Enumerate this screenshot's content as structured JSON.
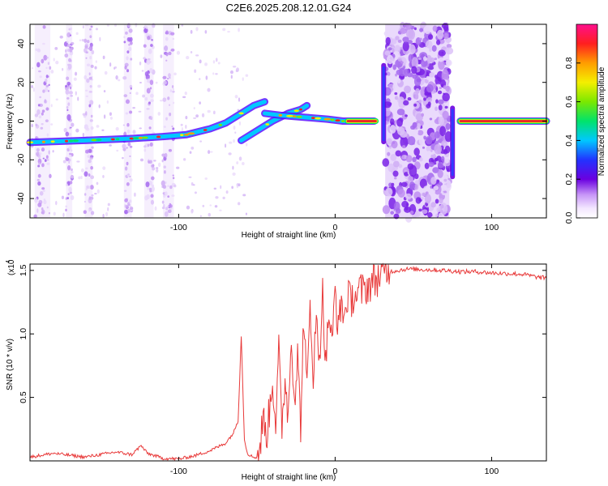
{
  "figure": {
    "title": "C2E6.2025.208.12.01.G24"
  },
  "chart_data": [
    {
      "type": "heatmap",
      "xlabel": "Height of straight line (km)",
      "ylabel": "Frequency (Hz)",
      "xlim": [
        -195,
        135
      ],
      "ylim": [
        -50,
        50
      ],
      "xticks": [
        -100,
        0,
        100
      ],
      "xtick_labels": [
        "-100",
        "0",
        "100"
      ],
      "yticks": [
        -40,
        -20,
        0,
        20,
        40
      ],
      "ytick_labels": [
        "-40",
        "-20",
        "0",
        "20",
        "40"
      ],
      "colorbar": {
        "label": "Normalized spectral amplitude",
        "range": [
          0,
          1
        ],
        "ticks": [
          0.0,
          0.2,
          0.4,
          0.6,
          0.8
        ],
        "tick_labels": [
          "0.0",
          "0.2",
          "0.4",
          "0.6",
          "0.8"
        ]
      },
      "ridges": [
        {
          "points": [
            [
              -195,
              -11
            ],
            [
              -160,
              -10
            ],
            [
              -130,
              -9
            ],
            [
              -110,
              -8
            ],
            [
              -95,
              -7
            ],
            [
              -80,
              -4
            ],
            [
              -70,
              -1
            ],
            [
              -60,
              4
            ],
            [
              -52,
              8
            ],
            [
              -45,
              10
            ]
          ]
        },
        {
          "points": [
            [
              -60,
              -10
            ],
            [
              -50,
              -5
            ],
            [
              -40,
              0
            ],
            [
              -30,
              4
            ],
            [
              -22,
              6
            ],
            [
              -18,
              8
            ]
          ]
        },
        {
          "points": [
            [
              -45,
              4
            ],
            [
              -35,
              3
            ],
            [
              -20,
              2
            ],
            [
              -5,
              1
            ],
            [
              5,
              0
            ],
            [
              25,
              0
            ]
          ]
        },
        {
          "points": [
            [
              80,
              0
            ],
            [
              135,
              0
            ]
          ]
        }
      ],
      "bright_segments": [
        {
          "x": [
            8,
            26
          ],
          "y": 0
        },
        {
          "x": [
            80,
            135
          ],
          "y": 0
        }
      ],
      "noise_bands": [
        [
          -192,
          -182
        ],
        [
          -172,
          -168
        ],
        [
          -160,
          -155
        ],
        [
          -135,
          -130
        ],
        [
          -122,
          -116
        ],
        [
          -110,
          -103
        ],
        [
          32,
          73
        ]
      ],
      "vertical_streaks": [
        {
          "x": 31,
          "y": [
            -12,
            30
          ]
        },
        {
          "x": 75,
          "y": [
            -30,
            8
          ]
        }
      ]
    },
    {
      "type": "line",
      "xlabel": "Height of straight line (km)",
      "ylabel": "SNR (10 * v/v)",
      "scale_label": "(x10",
      "scale_exponent": "4",
      "xlim": [
        -195,
        135
      ],
      "ylim": [
        0,
        15500
      ],
      "xticks": [
        -100,
        0,
        100
      ],
      "xtick_labels": [
        "-100",
        "0",
        "100"
      ],
      "yticks": [
        5000,
        10000,
        15000
      ],
      "ytick_labels": [
        "0.5",
        "1.0",
        "1.5"
      ],
      "color": "#e83a3a",
      "series": [
        {
          "x": [
            -195,
            -180,
            -160,
            -140,
            -130,
            -124,
            -120,
            -110,
            -100,
            -90,
            -80,
            -75,
            -70,
            -65,
            -62,
            -60,
            -58,
            -56,
            -54,
            -52,
            -50,
            -48,
            -46,
            -44,
            -42,
            -40,
            -38,
            -36,
            -34,
            -32,
            -30,
            -28,
            -26,
            -24,
            -22,
            -20,
            -18,
            -16,
            -14,
            -12,
            -10,
            -8,
            -6,
            -4,
            -2,
            0,
            2,
            4,
            6,
            8,
            10,
            12,
            14,
            16,
            18,
            20,
            22,
            24,
            26,
            28,
            30,
            32,
            35,
            40,
            45,
            50,
            60,
            70,
            80,
            90,
            100,
            110,
            120,
            130,
            135
          ],
          "y": [
            300,
            600,
            300,
            700,
            500,
            1200,
            600,
            200,
            150,
            400,
            800,
            1100,
            1400,
            2200,
            3200,
            9900,
            1700,
            600,
            400,
            300,
            300,
            1100,
            3500,
            1900,
            3900,
            6500,
            3000,
            8600,
            2500,
            6700,
            3400,
            10100,
            4900,
            8200,
            2800,
            11600,
            5200,
            12400,
            7100,
            10800,
            8300,
            13200,
            7600,
            11900,
            8800,
            13700,
            10200,
            12600,
            11200,
            13100,
            12400,
            13300,
            12900,
            13500,
            13300,
            13700,
            13900,
            14100,
            14300,
            14500,
            14700,
            14800,
            14900,
            15000,
            15100,
            15100,
            15050,
            15000,
            14900,
            14900,
            14800,
            14750,
            14700,
            14450,
            14400
          ]
        }
      ]
    }
  ]
}
